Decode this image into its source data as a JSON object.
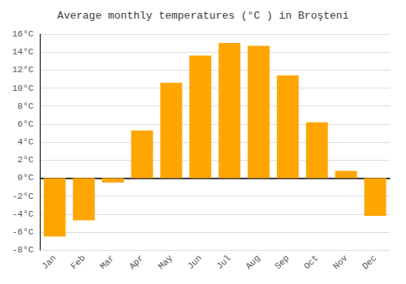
{
  "chart_data": {
    "type": "bar",
    "title": "Average monthly temperatures (°C ) in Broşteni",
    "categories": [
      "Jan",
      "Feb",
      "Mar",
      "Apr",
      "May",
      "Jun",
      "Jul",
      "Aug",
      "Sep",
      "Oct",
      "Nov",
      "Dec"
    ],
    "values": [
      -6.5,
      -4.7,
      -0.5,
      5.3,
      10.6,
      13.6,
      15.0,
      14.7,
      11.4,
      6.2,
      0.8,
      -4.2
    ],
    "color": "#FFA500",
    "ylim": [
      -8,
      16
    ],
    "yticks": [
      {
        "value": -8,
        "label": "-8°C"
      },
      {
        "value": -6,
        "label": "-6°C"
      },
      {
        "value": -4,
        "label": "-4°C"
      },
      {
        "value": -2,
        "label": "-2°C"
      },
      {
        "value": 0,
        "label": "0°C"
      },
      {
        "value": 2,
        "label": "2°C"
      },
      {
        "value": 4,
        "label": "4°C"
      },
      {
        "value": 6,
        "label": "6°C"
      },
      {
        "value": 8,
        "label": "8°C"
      },
      {
        "value": 10,
        "label": "10°C"
      },
      {
        "value": 12,
        "label": "12°C"
      },
      {
        "value": 14,
        "label": "14°C"
      },
      {
        "value": 16,
        "label": "16°C"
      }
    ],
    "grid": true
  }
}
